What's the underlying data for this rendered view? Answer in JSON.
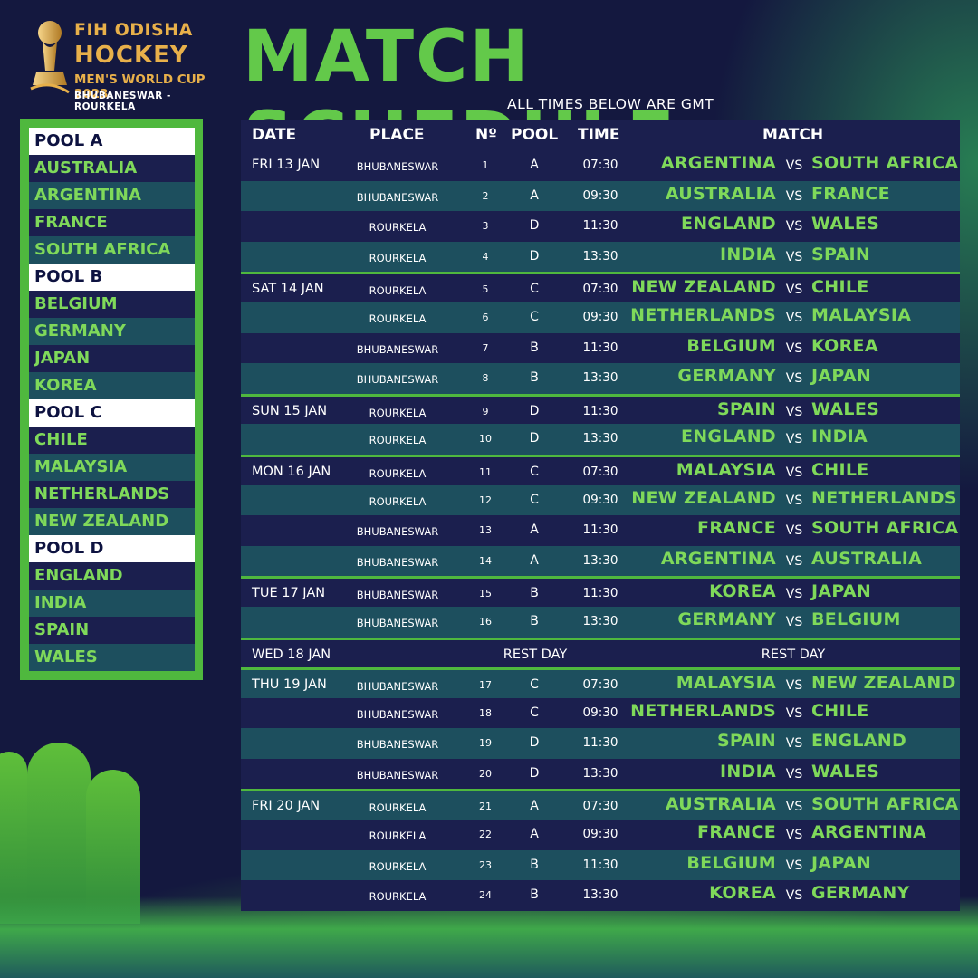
{
  "logo": {
    "line1": "FIH ODISHA",
    "line2": "HOCKEY",
    "line3": "MEN'S WORLD CUP 2023",
    "line4": "BHUBANESWAR - ROURKELA"
  },
  "title": "MATCH SCHEDULE",
  "subtitle": "ALL TIMES BELOW ARE GMT",
  "colors": {
    "accent_green": "#63c94a",
    "team_green": "#7fd95a",
    "navy": "#1b1f4e",
    "teal": "#1d4f5e"
  },
  "pools": [
    {
      "name": "POOL A",
      "teams": [
        "AUSTRALIA",
        "ARGENTINA",
        "FRANCE",
        "SOUTH AFRICA"
      ]
    },
    {
      "name": "POOL B",
      "teams": [
        "BELGIUM",
        "GERMANY",
        "JAPAN",
        "KOREA"
      ]
    },
    {
      "name": "POOL C",
      "teams": [
        "CHILE",
        "MALAYSIA",
        "NETHERLANDS",
        "NEW ZEALAND"
      ]
    },
    {
      "name": "POOL D",
      "teams": [
        "ENGLAND",
        "INDIA",
        "SPAIN",
        "WALES"
      ]
    }
  ],
  "columns": {
    "date": "DATE",
    "place": "PLACE",
    "num": "Nº",
    "pool": "POOL",
    "time": "TIME",
    "match": "MATCH"
  },
  "vs": "VS",
  "rows": [
    {
      "date": "FRI 13 JAN",
      "place": "BHUBANESWAR",
      "num": "1",
      "pool": "A",
      "time": "07:30",
      "home": "ARGENTINA",
      "away": "SOUTH AFRICA"
    },
    {
      "date": "",
      "place": "BHUBANESWAR",
      "num": "2",
      "pool": "A",
      "time": "09:30",
      "home": "AUSTRALIA",
      "away": "FRANCE"
    },
    {
      "date": "",
      "place": "ROURKELA",
      "num": "3",
      "pool": "D",
      "time": "11:30",
      "home": "ENGLAND",
      "away": "WALES"
    },
    {
      "date": "",
      "place": "ROURKELA",
      "num": "4",
      "pool": "D",
      "time": "13:30",
      "home": "INDIA",
      "away": "SPAIN"
    },
    {
      "date": "SAT 14 JAN",
      "place": "ROURKELA",
      "num": "5",
      "pool": "C",
      "time": "07:30",
      "home": "NEW ZEALAND",
      "away": "CHILE"
    },
    {
      "date": "",
      "place": "ROURKELA",
      "num": "6",
      "pool": "C",
      "time": "09:30",
      "home": "NETHERLANDS",
      "away": "MALAYSIA"
    },
    {
      "date": "",
      "place": "BHUBANESWAR",
      "num": "7",
      "pool": "B",
      "time": "11:30",
      "home": "BELGIUM",
      "away": "KOREA"
    },
    {
      "date": "",
      "place": "BHUBANESWAR",
      "num": "8",
      "pool": "B",
      "time": "13:30",
      "home": "GERMANY",
      "away": "JAPAN"
    },
    {
      "date": "SUN 15 JAN",
      "place": "ROURKELA",
      "num": "9",
      "pool": "D",
      "time": "11:30",
      "home": "SPAIN",
      "away": "WALES"
    },
    {
      "date": "",
      "place": "ROURKELA",
      "num": "10",
      "pool": "D",
      "time": "13:30",
      "home": "ENGLAND",
      "away": "INDIA"
    },
    {
      "date": "MON 16 JAN",
      "place": "ROURKELA",
      "num": "11",
      "pool": "C",
      "time": "07:30",
      "home": "MALAYSIA",
      "away": "CHILE"
    },
    {
      "date": "",
      "place": "ROURKELA",
      "num": "12",
      "pool": "C",
      "time": "09:30",
      "home": "NEW ZEALAND",
      "away": "NETHERLANDS"
    },
    {
      "date": "",
      "place": "BHUBANESWAR",
      "num": "13",
      "pool": "A",
      "time": "11:30",
      "home": "FRANCE",
      "away": "SOUTH AFRICA"
    },
    {
      "date": "",
      "place": "BHUBANESWAR",
      "num": "14",
      "pool": "A",
      "time": "13:30",
      "home": "ARGENTINA",
      "away": "AUSTRALIA"
    },
    {
      "date": "TUE 17 JAN",
      "place": "BHUBANESWAR",
      "num": "15",
      "pool": "B",
      "time": "11:30",
      "home": "KOREA",
      "away": "JAPAN"
    },
    {
      "date": "",
      "place": "BHUBANESWAR",
      "num": "16",
      "pool": "B",
      "time": "13:30",
      "home": "GERMANY",
      "away": "BELGIUM"
    },
    {
      "date": "WED 18 JAN",
      "rest": true,
      "rest_mid": "REST DAY",
      "rest_right": "REST DAY"
    },
    {
      "date": "THU 19 JAN",
      "place": "BHUBANESWAR",
      "num": "17",
      "pool": "C",
      "time": "07:30",
      "home": "MALAYSIA",
      "away": "NEW ZEALAND"
    },
    {
      "date": "",
      "place": "BHUBANESWAR",
      "num": "18",
      "pool": "C",
      "time": "09:30",
      "home": "NETHERLANDS",
      "away": "CHILE"
    },
    {
      "date": "",
      "place": "BHUBANESWAR",
      "num": "19",
      "pool": "D",
      "time": "11:30",
      "home": "SPAIN",
      "away": "ENGLAND"
    },
    {
      "date": "",
      "place": "BHUBANESWAR",
      "num": "20",
      "pool": "D",
      "time": "13:30",
      "home": "INDIA",
      "away": "WALES"
    },
    {
      "date": "FRI 20 JAN",
      "place": "ROURKELA",
      "num": "21",
      "pool": "A",
      "time": "07:30",
      "home": "AUSTRALIA",
      "away": "SOUTH AFRICA"
    },
    {
      "date": "",
      "place": "ROURKELA",
      "num": "22",
      "pool": "A",
      "time": "09:30",
      "home": "FRANCE",
      "away": "ARGENTINA"
    },
    {
      "date": "",
      "place": "ROURKELA",
      "num": "23",
      "pool": "B",
      "time": "11:30",
      "home": "BELGIUM",
      "away": "JAPAN"
    },
    {
      "date": "",
      "place": "ROURKELA",
      "num": "24",
      "pool": "B",
      "time": "13:30",
      "home": "KOREA",
      "away": "GERMANY"
    }
  ]
}
